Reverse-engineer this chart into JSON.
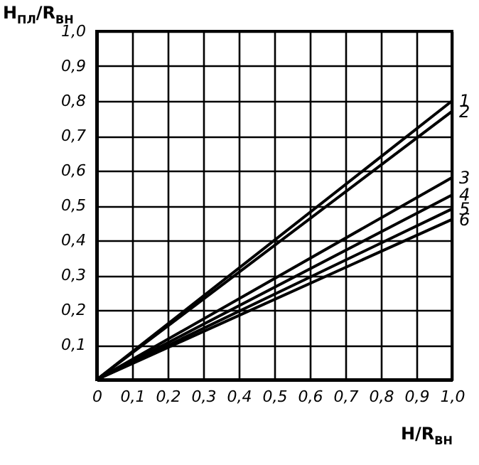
{
  "chart_data": {
    "type": "line",
    "xlabel": "H/R$_{ВН}$",
    "ylabel": "H$_{ПЛ}$/R$_{ВН}$",
    "x": [
      0,
      1.0
    ],
    "series": [
      {
        "name": "1",
        "color": "#000000",
        "values": [
          0,
          0.8
        ]
      },
      {
        "name": "2",
        "color": "#000000",
        "values": [
          0,
          0.77
        ]
      },
      {
        "name": "3",
        "color": "#000000",
        "values": [
          0,
          0.58
        ]
      },
      {
        "name": "4",
        "color": "#000000",
        "values": [
          0,
          0.53
        ]
      },
      {
        "name": "5",
        "color": "#000000",
        "values": [
          0,
          0.49
        ]
      },
      {
        "name": "6",
        "color": "#000000",
        "values": [
          0,
          0.46
        ]
      }
    ],
    "xlim": [
      0,
      1.0
    ],
    "ylim": [
      0,
      1.0
    ],
    "xticks": [
      0,
      {
        "value": 0.1,
        "label": "0,1"
      },
      {
        "value": 0.2,
        "label": "0,2"
      },
      {
        "value": 0.3,
        "label": "0,3"
      },
      {
        "value": 0.4,
        "label": "0,4"
      },
      {
        "value": 0.5,
        "label": "0,5"
      },
      {
        "value": 0.6,
        "label": "0,6"
      },
      {
        "value": 0.7,
        "label": "0,7"
      },
      {
        "value": 0.8,
        "label": "0,8"
      },
      {
        "value": 0.9,
        "label": "0,9"
      },
      {
        "value": 1.0,
        "label": "1,0"
      }
    ],
    "yticks": [
      {
        "value": 0.1,
        "label": "0,1"
      },
      {
        "value": 0.2,
        "label": "0,2"
      },
      {
        "value": 0.3,
        "label": "0,3"
      },
      {
        "value": 0.4,
        "label": "0,4"
      },
      {
        "value": 0.5,
        "label": "0,5"
      },
      {
        "value": 0.6,
        "label": "0,6"
      },
      {
        "value": 0.7,
        "label": "0,7"
      },
      {
        "value": 0.8,
        "label": "0,8"
      },
      {
        "value": 0.9,
        "label": "0,9"
      },
      {
        "value": 1.0,
        "label": "1,0"
      }
    ],
    "grid": true,
    "marker": "none",
    "line_style": "solid",
    "legend": false
  }
}
